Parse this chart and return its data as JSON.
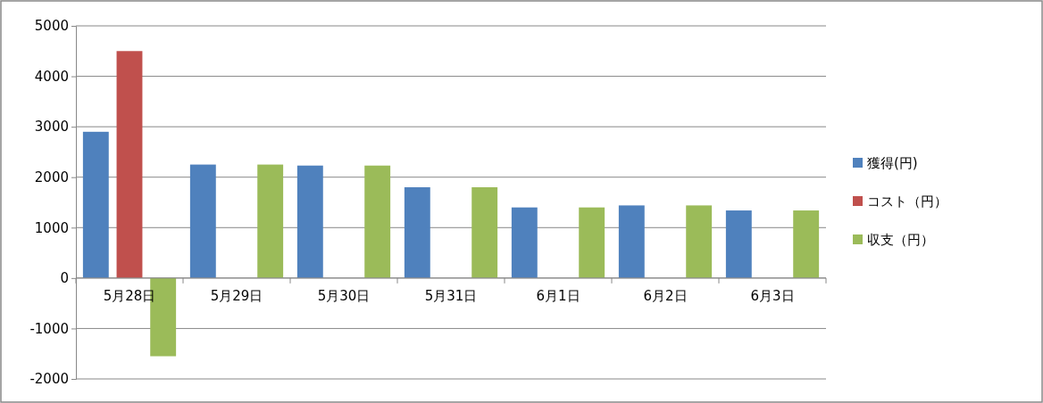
{
  "chart_data": {
    "type": "bar",
    "categories": [
      "5月28日",
      "5月29日",
      "5月30日",
      "5月31日",
      "6月1日",
      "6月2日",
      "6月3日"
    ],
    "series": [
      {
        "name": "獲得(円)",
        "color": "#4f81bd",
        "values": [
          2900,
          2250,
          2230,
          1800,
          1400,
          1440,
          1340
        ]
      },
      {
        "name": "コスト（円）",
        "color": "#c0504d",
        "values": [
          4500,
          null,
          null,
          null,
          null,
          null,
          null
        ]
      },
      {
        "name": "収支（円）",
        "color": "#9bbb59",
        "values": [
          -1550,
          2250,
          2230,
          1800,
          1400,
          1440,
          1340
        ]
      }
    ],
    "ylim": [
      -2000,
      5000
    ],
    "yticks": [
      -2000,
      -1000,
      0,
      1000,
      2000,
      3000,
      4000,
      5000
    ],
    "grid": "y",
    "legend": "right"
  }
}
